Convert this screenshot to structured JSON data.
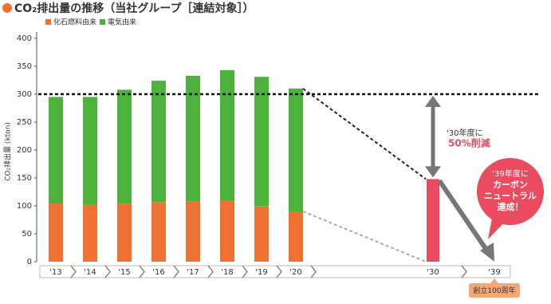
{
  "chart_data": {
    "type": "bar",
    "title": "CO₂排出量の推移（当社グループ［連結対象］）",
    "y_label": "CO₂排出量 (kton)",
    "categories": [
      "'13",
      "'14",
      "'15",
      "'16",
      "'17",
      "'18",
      "'19",
      "'20",
      "'30",
      "'39"
    ],
    "series": [
      {
        "name": "化石燃料由来",
        "color": "#f07232",
        "values": [
          105,
          102,
          104,
          107,
          108,
          110,
          99,
          90,
          null,
          null
        ]
      },
      {
        "name": "電気由来",
        "color": "#4db23c",
        "values": [
          190,
          193,
          204,
          217,
          225,
          233,
          232,
          220,
          null,
          null
        ]
      }
    ],
    "target": {
      "color": "#ea4b5e",
      "values": [
        null,
        null,
        null,
        null,
        null,
        null,
        null,
        null,
        148,
        0
      ]
    },
    "reference_line": 300,
    "ylim": [
      0,
      400
    ],
    "yticks": [
      0,
      50,
      100,
      150,
      200,
      250,
      300,
      350,
      400
    ],
    "annotations": {
      "reduction_1": "'30年度に",
      "reduction_2": "50%削減",
      "neutral": [
        "'39年度に",
        "カーボン",
        "ニュートラル",
        "達成！"
      ],
      "centennial": "創立100周年"
    }
  }
}
